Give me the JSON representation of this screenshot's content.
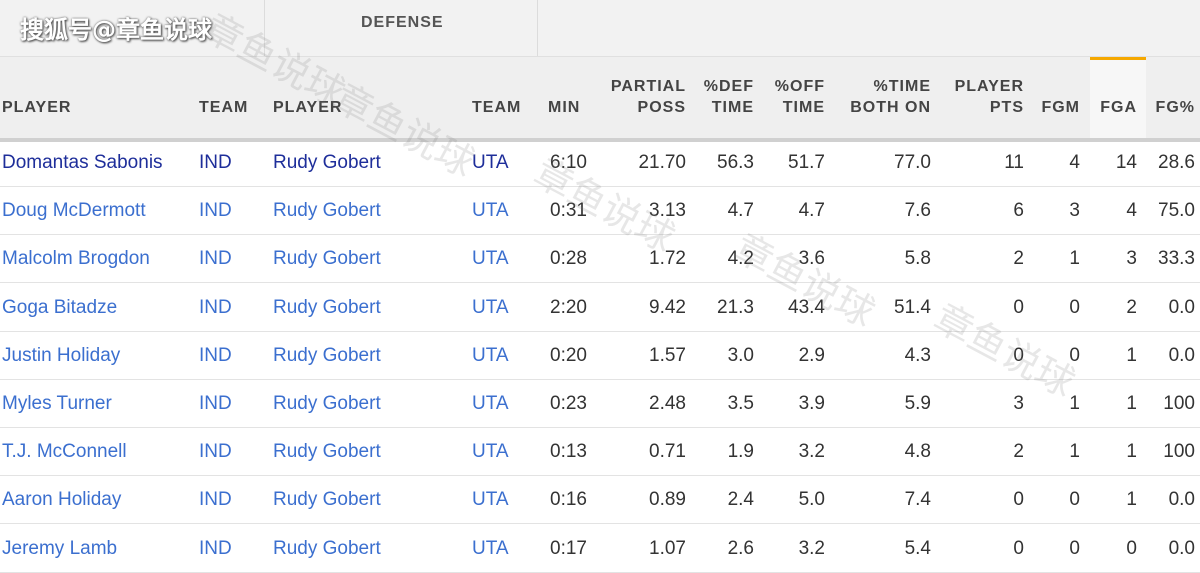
{
  "watermark": "搜狐号@章鱼说球",
  "watermark_diagonal": "章鱼说球",
  "groups": {
    "defense": "DEFENSE"
  },
  "headers": {
    "player1": "PLAYER",
    "team1": "TEAM",
    "player2": "PLAYER",
    "team2": "TEAM",
    "min": "MIN",
    "partial_poss_1": "PARTIAL",
    "partial_poss_2": "POSS",
    "def_time_1": "%DEF",
    "def_time_2": "TIME",
    "off_time_1": "%OFF",
    "off_time_2": "TIME",
    "time_both_1": "%TIME",
    "time_both_2": "BOTH ON",
    "player_pts_1": "PLAYER",
    "player_pts_2": "PTS",
    "fgm": "FGM",
    "fga": "FGA",
    "fgpct": "FG%"
  },
  "rows": [
    {
      "player": "Domantas Sabonis",
      "team": "IND",
      "def_player": "Rudy Gobert",
      "def_team": "UTA",
      "min": "6:10",
      "poss": "21.70",
      "def_time": "56.3",
      "off_time": "51.7",
      "both": "77.0",
      "pts": "11",
      "fgm": "4",
      "fga": "14",
      "fgpct": "28.6"
    },
    {
      "player": "Doug McDermott",
      "team": "IND",
      "def_player": "Rudy Gobert",
      "def_team": "UTA",
      "min": "0:31",
      "poss": "3.13",
      "def_time": "4.7",
      "off_time": "4.7",
      "both": "7.6",
      "pts": "6",
      "fgm": "3",
      "fga": "4",
      "fgpct": "75.0"
    },
    {
      "player": "Malcolm Brogdon",
      "team": "IND",
      "def_player": "Rudy Gobert",
      "def_team": "UTA",
      "min": "0:28",
      "poss": "1.72",
      "def_time": "4.2",
      "off_time": "3.6",
      "both": "5.8",
      "pts": "2",
      "fgm": "1",
      "fga": "3",
      "fgpct": "33.3"
    },
    {
      "player": "Goga Bitadze",
      "team": "IND",
      "def_player": "Rudy Gobert",
      "def_team": "UTA",
      "min": "2:20",
      "poss": "9.42",
      "def_time": "21.3",
      "off_time": "43.4",
      "both": "51.4",
      "pts": "0",
      "fgm": "0",
      "fga": "2",
      "fgpct": "0.0"
    },
    {
      "player": "Justin Holiday",
      "team": "IND",
      "def_player": "Rudy Gobert",
      "def_team": "UTA",
      "min": "0:20",
      "poss": "1.57",
      "def_time": "3.0",
      "off_time": "2.9",
      "both": "4.3",
      "pts": "0",
      "fgm": "0",
      "fga": "1",
      "fgpct": "0.0"
    },
    {
      "player": "Myles Turner",
      "team": "IND",
      "def_player": "Rudy Gobert",
      "def_team": "UTA",
      "min": "0:23",
      "poss": "2.48",
      "def_time": "3.5",
      "off_time": "3.9",
      "both": "5.9",
      "pts": "3",
      "fgm": "1",
      "fga": "1",
      "fgpct": "100"
    },
    {
      "player": "T.J. McConnell",
      "team": "IND",
      "def_player": "Rudy Gobert",
      "def_team": "UTA",
      "min": "0:13",
      "poss": "0.71",
      "def_time": "1.9",
      "off_time": "3.2",
      "both": "4.8",
      "pts": "2",
      "fgm": "1",
      "fga": "1",
      "fgpct": "100"
    },
    {
      "player": "Aaron Holiday",
      "team": "IND",
      "def_player": "Rudy Gobert",
      "def_team": "UTA",
      "min": "0:16",
      "poss": "0.89",
      "def_time": "2.4",
      "off_time": "5.0",
      "both": "7.4",
      "pts": "0",
      "fgm": "0",
      "fga": "1",
      "fgpct": "0.0"
    },
    {
      "player": "Jeremy Lamb",
      "team": "IND",
      "def_player": "Rudy Gobert",
      "def_team": "UTA",
      "min": "0:17",
      "poss": "1.07",
      "def_time": "2.6",
      "off_time": "3.2",
      "both": "5.4",
      "pts": "0",
      "fgm": "0",
      "fga": "0",
      "fgpct": "0.0"
    }
  ],
  "colors": {
    "link": "#3b6fcf",
    "link_first": "#1e2e9a",
    "sort_accent": "#f5a800"
  }
}
